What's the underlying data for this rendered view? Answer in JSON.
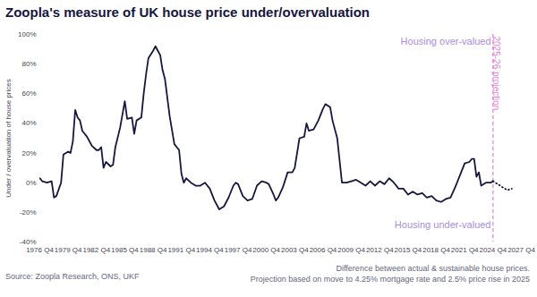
{
  "chart_data": {
    "type": "line",
    "title": "Zoopla's measure of UK house price under/overvaluation",
    "ylabel": "Under / overvaluation of house prices",
    "source": "Source: Zoopla Research, ONS, UKF",
    "note": [
      "Difference between actual & sustainable house prices.",
      "Projection based on move to 4.25% mortgage rate and 2.5% price rise in 2025"
    ],
    "annotations": [
      "Housing over-valued",
      "Housing under-valued"
    ],
    "projection": {
      "x": 2024.75,
      "label": "2025-26 projection"
    },
    "xlim": [
      1976.75,
      2027.75
    ],
    "xticks": [
      {
        "value": 1976.75,
        "label": "1976 Q4"
      },
      {
        "value": 1979.75,
        "label": "1979 Q4"
      },
      {
        "value": 1982.75,
        "label": "1982 Q4"
      },
      {
        "value": 1985.75,
        "label": "1985 Q4"
      },
      {
        "value": 1988.75,
        "label": "1988 Q4"
      },
      {
        "value": 1991.75,
        "label": "1991 Q4"
      },
      {
        "value": 1994.75,
        "label": "1994 Q4"
      },
      {
        "value": 1997.75,
        "label": "1997 Q4"
      },
      {
        "value": 2000.75,
        "label": "2000 Q4"
      },
      {
        "value": 2003.75,
        "label": "2003 Q4"
      },
      {
        "value": 2006.75,
        "label": "2006 Q4"
      },
      {
        "value": 2009.75,
        "label": "2009 Q4"
      },
      {
        "value": 2012.75,
        "label": "2012 Q4"
      },
      {
        "value": 2015.75,
        "label": "2015 Q4"
      },
      {
        "value": 2018.75,
        "label": "2018 Q4"
      },
      {
        "value": 2021.75,
        "label": "2021 Q4"
      },
      {
        "value": 2024.75,
        "label": "2024 Q4"
      },
      {
        "value": 2027.75,
        "label": "2027 Q4"
      }
    ],
    "ylim": [
      -40,
      100
    ],
    "yticks": [
      {
        "value": -40,
        "label": "-40%"
      },
      {
        "value": -20,
        "label": "-20%"
      },
      {
        "value": 0,
        "label": "0%"
      },
      {
        "value": 20,
        "label": "20%"
      },
      {
        "value": 40,
        "label": "40%"
      },
      {
        "value": 60,
        "label": "60%"
      },
      {
        "value": 80,
        "label": "80%"
      },
      {
        "value": 100,
        "label": "100%"
      }
    ],
    "grid": false,
    "series": [
      {
        "color": "#16163f",
        "line_style": "solid",
        "x": [
          1976.75,
          1977.0,
          1977.5,
          1978.0,
          1978.25,
          1978.5,
          1979.0,
          1979.25,
          1979.75,
          1980.0,
          1980.25,
          1980.5,
          1980.75,
          1981.0,
          1981.25,
          1981.75,
          1982.25,
          1982.75,
          1983.0,
          1983.25,
          1983.5,
          1983.75,
          1984.25,
          1984.5,
          1984.75,
          1985.25,
          1985.75,
          1986.0,
          1986.5,
          1986.75,
          1987.0,
          1987.5,
          1987.75,
          1988.0,
          1988.25,
          1988.75,
          1989.0,
          1989.25,
          1989.5,
          1989.75,
          1990.0,
          1990.5,
          1991.0,
          1991.5,
          1991.75,
          1992.0,
          1992.25,
          1992.75,
          1993.25,
          1993.75,
          1994.25,
          1994.75,
          1995.25,
          1995.75,
          1996.25,
          1996.75,
          1997.25,
          1997.5,
          1997.75,
          1998.25,
          1998.75,
          1999.25,
          1999.75,
          2000.25,
          2000.75,
          2001.0,
          2001.5,
          2001.75,
          2002.0,
          2002.5,
          2003.0,
          2003.5,
          2003.75,
          2004.25,
          2004.75,
          2005.0,
          2005.25,
          2005.75,
          2006.25,
          2006.75,
          2007.0,
          2007.5,
          2007.75,
          2008.25,
          2008.75,
          2009.25,
          2009.75,
          2010.25,
          2010.75,
          2011.25,
          2011.75,
          2012.25,
          2012.75,
          2013.25,
          2013.75,
          2014.25,
          2014.75,
          2015.25,
          2015.75,
          2016.25,
          2016.75,
          2017.25,
          2017.75,
          2018.25,
          2018.75,
          2019.25,
          2019.75,
          2020.25,
          2020.75,
          2021.25,
          2021.75,
          2022.25,
          2022.5,
          2022.75,
          2023.0,
          2023.25,
          2023.5,
          2024.0,
          2024.5,
          2024.75
        ],
        "values": [
          3,
          1,
          0,
          1,
          -10,
          -9,
          0,
          19,
          21,
          20,
          28,
          49,
          44,
          42,
          35,
          31,
          25,
          22,
          22,
          24,
          10,
          14,
          11,
          12,
          24,
          37,
          55,
          43,
          44,
          33,
          42,
          44,
          60,
          73,
          84,
          89,
          92,
          89,
          86,
          76,
          70,
          45,
          26,
          22,
          6,
          0,
          3,
          0,
          -2,
          -2,
          0,
          -4,
          -12,
          -18,
          -16,
          -10,
          -2,
          0,
          -1,
          -9,
          -12,
          -11,
          -2,
          1,
          0,
          -1,
          -8,
          -12,
          -10,
          -3,
          7,
          7,
          10,
          30,
          31,
          40,
          35,
          36,
          42,
          50,
          53,
          51,
          42,
          30,
          0,
          0,
          1,
          2,
          0,
          -2,
          1,
          -2,
          1,
          -1,
          3,
          0,
          -4,
          -4,
          -8,
          -6,
          -8,
          -7,
          -10,
          -9,
          -12,
          -13,
          -11,
          -10,
          -3,
          5,
          13,
          14,
          16,
          16,
          4,
          7,
          -2,
          0,
          0,
          1
        ]
      },
      {
        "color": "#16163f",
        "line_style": "dotted",
        "x": [
          2024.75,
          2025.25,
          2025.75,
          2026.25,
          2026.75
        ],
        "values": [
          1,
          -1,
          -3,
          -5,
          -4
        ]
      }
    ]
  }
}
